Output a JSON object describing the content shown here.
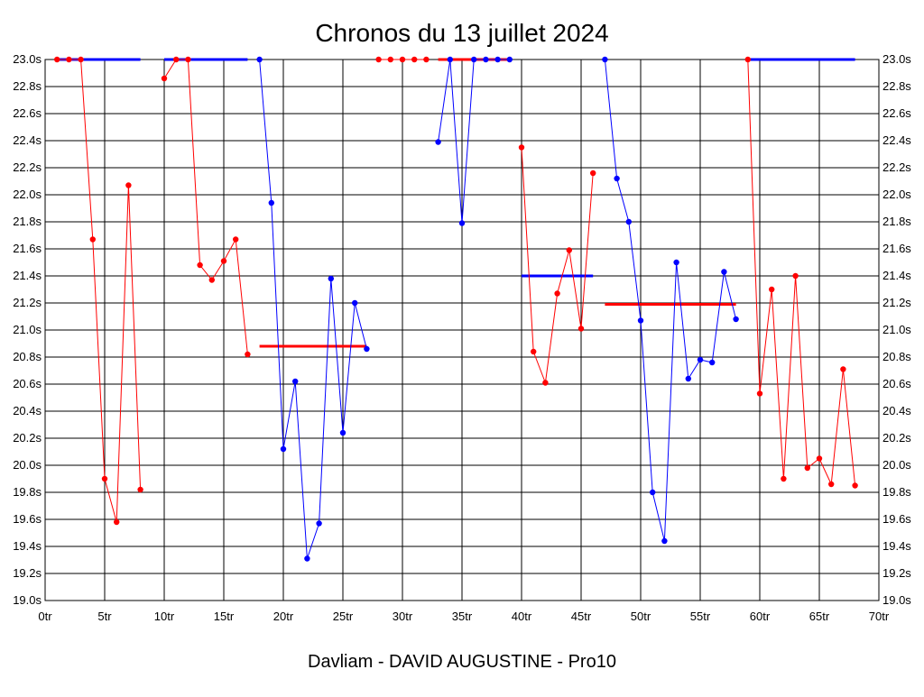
{
  "chart_data": {
    "type": "line",
    "title": "Chronos du 13 juillet 2024",
    "footer": "Davliam - DAVID AUGUSTINE - Pro10",
    "xlim": [
      0,
      70
    ],
    "ylim": [
      19.0,
      23.0
    ],
    "x_ticks": [
      0,
      5,
      10,
      15,
      20,
      25,
      30,
      35,
      40,
      45,
      50,
      55,
      60,
      65,
      70
    ],
    "x_tick_labels": [
      "0tr",
      "5tr",
      "10tr",
      "15tr",
      "20tr",
      "25tr",
      "30tr",
      "35tr",
      "40tr",
      "45tr",
      "50tr",
      "55tr",
      "60tr",
      "65tr",
      "70tr"
    ],
    "y_ticks": [
      19.0,
      19.2,
      19.4,
      19.6,
      19.8,
      20.0,
      20.2,
      20.4,
      20.6,
      20.8,
      21.0,
      21.2,
      21.4,
      21.6,
      21.8,
      22.0,
      22.2,
      22.4,
      22.6,
      22.8,
      23.0
    ],
    "y_tick_labels": [
      "19.0s",
      "19.2s",
      "19.4s",
      "19.6s",
      "19.8s",
      "20.0s",
      "20.2s",
      "20.4s",
      "20.6s",
      "20.8s",
      "21.0s",
      "21.2s",
      "21.4s",
      "21.6s",
      "21.8s",
      "22.0s",
      "22.2s",
      "22.4s",
      "22.6s",
      "22.8s",
      "23.0s"
    ],
    "grid": true,
    "colors": {
      "red": "#ff0000",
      "blue": "#0000ff",
      "grid": "#000000"
    },
    "segments": [
      {
        "color": "red",
        "x": [
          1,
          2,
          3,
          4,
          5,
          6,
          7,
          8
        ],
        "y": [
          23.0,
          23.0,
          23.0,
          21.67,
          19.9,
          19.58,
          22.07,
          19.82
        ]
      },
      {
        "color": "red",
        "x": [
          10,
          11,
          12,
          13,
          14,
          15,
          16,
          17
        ],
        "y": [
          22.86,
          23.0,
          23.0,
          21.48,
          21.37,
          21.51,
          21.67,
          20.82
        ]
      },
      {
        "color": "blue",
        "x": [
          18,
          19,
          20,
          21,
          22,
          23,
          24,
          25,
          26,
          27
        ],
        "y": [
          23.0,
          21.94,
          20.12,
          20.62,
          19.31,
          19.57,
          21.38,
          20.24,
          21.2,
          20.86
        ]
      },
      {
        "color": "red",
        "x": [
          28,
          29,
          30,
          31,
          32
        ],
        "y": [
          23.0,
          23.0,
          23.0,
          23.0,
          23.0
        ]
      },
      {
        "color": "blue",
        "x": [
          33,
          34,
          35,
          36,
          37,
          38,
          39
        ],
        "y": [
          22.39,
          23.0,
          21.79,
          23.0,
          23.0,
          23.0,
          23.0
        ]
      },
      {
        "color": "red",
        "x": [
          40,
          41,
          42,
          43,
          44,
          45,
          46
        ],
        "y": [
          22.35,
          20.84,
          20.61,
          21.27,
          21.59,
          21.01,
          22.16
        ]
      },
      {
        "color": "blue",
        "x": [
          47,
          48,
          49,
          50,
          51,
          52,
          53,
          54,
          55,
          56,
          57,
          58
        ],
        "y": [
          23.0,
          22.12,
          21.8,
          21.07,
          19.8,
          19.44,
          21.5,
          20.64,
          20.78,
          20.76,
          21.43,
          21.08
        ]
      },
      {
        "color": "red",
        "x": [
          59,
          60,
          61,
          62,
          63,
          64,
          65,
          66,
          67,
          68
        ],
        "y": [
          23.0,
          20.53,
          21.3,
          19.9,
          21.4,
          19.98,
          20.05,
          19.86,
          20.71,
          19.85
        ]
      }
    ],
    "reference_lines": [
      {
        "color": "blue",
        "x1": 1,
        "x2": 8,
        "y": 23.0
      },
      {
        "color": "blue",
        "x1": 10,
        "x2": 17,
        "y": 23.0
      },
      {
        "color": "red",
        "x1": 18,
        "x2": 27,
        "y": 20.88
      },
      {
        "color": "red",
        "x1": 33,
        "x2": 39,
        "y": 23.0
      },
      {
        "color": "blue",
        "x1": 40,
        "x2": 46,
        "y": 21.4
      },
      {
        "color": "red",
        "x1": 47,
        "x2": 58,
        "y": 21.19
      },
      {
        "color": "blue",
        "x1": 59,
        "x2": 68,
        "y": 23.0
      }
    ]
  }
}
